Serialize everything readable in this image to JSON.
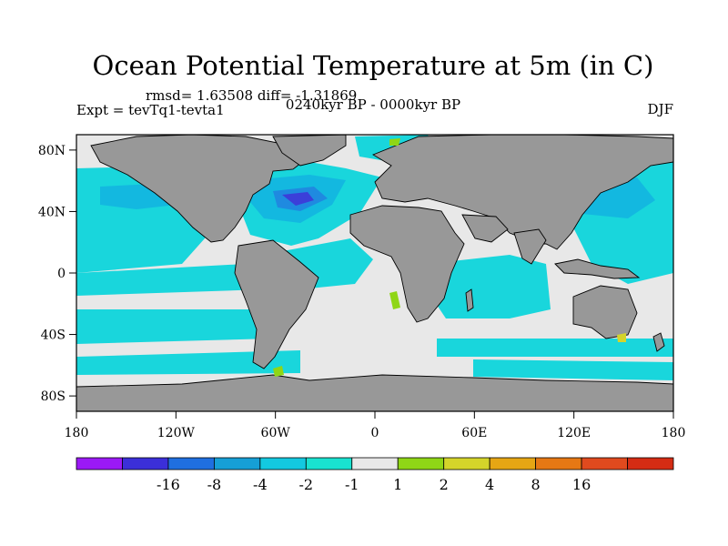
{
  "title": "Ocean Potential Temperature at 5m (in C)",
  "stats": "rmsd= 1.63508 diff= -1.31869",
  "experiment": "Expt = tevTq1-tevta1",
  "period": "0240kyr BP - 0000kyr BP",
  "season": "DJF",
  "map": {
    "projection": "cylindrical equidistant",
    "lon_range": [
      -180,
      180
    ],
    "lat_range": [
      -90,
      90
    ],
    "lon_ticks": [
      {
        "value": -180,
        "label": "180"
      },
      {
        "value": -120,
        "label": "120W"
      },
      {
        "value": -60,
        "label": "60W"
      },
      {
        "value": 0,
        "label": "0"
      },
      {
        "value": 60,
        "label": "60E"
      },
      {
        "value": 120,
        "label": "120E"
      },
      {
        "value": 180,
        "label": "180"
      }
    ],
    "lat_ticks": [
      {
        "value": 80,
        "label": "80N"
      },
      {
        "value": 40,
        "label": "40N"
      },
      {
        "value": 0,
        "label": "0"
      },
      {
        "value": -40,
        "label": "40S"
      },
      {
        "value": -80,
        "label": "80S"
      }
    ]
  },
  "colorbar": {
    "colors": [
      "#9b19f5",
      "#3b2fd9",
      "#1f6fe0",
      "#169fd6",
      "#13c9e0",
      "#19e2d0",
      "#e8e8e8",
      "#8fd616",
      "#d4d42a",
      "#e6a614",
      "#e67814",
      "#e04a1e",
      "#d42c14"
    ],
    "labels": [
      "-16",
      "-8",
      "-4",
      "-2",
      "-1",
      "1",
      "2",
      "4",
      "8",
      "16"
    ]
  },
  "colors": {
    "land": "#989898",
    "neutral": "#e8e8e8",
    "cool1": "#19d6dc",
    "cool2": "#13b8e0",
    "cool3": "#1f8ae0",
    "cool4": "#3b3fd9",
    "warm1": "#8fd616",
    "warm2": "#d4d42a"
  }
}
